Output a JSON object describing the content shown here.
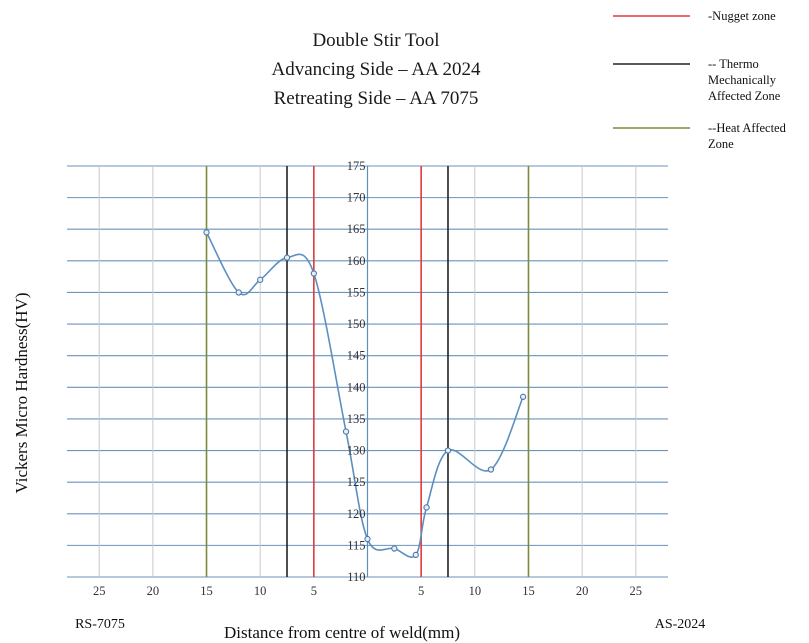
{
  "chart_data": {
    "type": "line",
    "title_lines": [
      "Double Stir Tool",
      "Advancing Side – AA 2024",
      "Retreating Side – AA 7075"
    ],
    "xlabel": "Distance from centre of weld(mm)",
    "ylabel": "Vickers Micro Hardness(HV)",
    "x_left_label": "RS-7075",
    "x_right_label": "AS-2024",
    "xlim": [
      -28,
      28
    ],
    "ylim": [
      110,
      175
    ],
    "x_ticks": [
      {
        "value": -25,
        "label": "25"
      },
      {
        "value": -20,
        "label": "20"
      },
      {
        "value": -15,
        "label": "15"
      },
      {
        "value": -10,
        "label": "10"
      },
      {
        "value": -5,
        "label": "5"
      },
      {
        "value": 5,
        "label": "5"
      },
      {
        "value": 10,
        "label": "10"
      },
      {
        "value": 15,
        "label": "15"
      },
      {
        "value": 20,
        "label": "20"
      },
      {
        "value": 25,
        "label": "25"
      }
    ],
    "y_ticks": [
      110,
      115,
      120,
      125,
      130,
      135,
      140,
      145,
      150,
      155,
      160,
      165,
      170,
      175
    ],
    "series": [
      {
        "x": [
          -15,
          -12,
          -10,
          -7.5,
          -5,
          -2,
          0,
          2.5,
          4.5,
          5.5,
          7.5,
          11.5,
          14.5
        ],
        "y": [
          164.5,
          155,
          157,
          160.5,
          158,
          133,
          116,
          114.5,
          113.5,
          121,
          130,
          127,
          138.5
        ],
        "color": "#5b8fc2"
      }
    ],
    "zone_lines": [
      {
        "x": -5,
        "color": "#e23a3a"
      },
      {
        "x": 5,
        "color": "#e23a3a"
      },
      {
        "x": -7.5,
        "color": "#222222"
      },
      {
        "x": 7.5,
        "color": "#222222"
      },
      {
        "x": -15,
        "color": "#7d8a3a"
      },
      {
        "x": 15,
        "color": "#7d8a3a"
      }
    ],
    "center_line_color": "#5b8fc2",
    "grid": true,
    "grid_color": "#6a93bd",
    "legend_position": "top-right",
    "legend": [
      {
        "lines": [
          "-Nugget zone"
        ],
        "color": "#e23a3a"
      },
      {
        "lines": [
          "-- Thermo",
          "Mechanically",
          "Affected Zone"
        ],
        "color": "#222222"
      },
      {
        "lines": [
          "--Heat Affected",
          "Zone"
        ],
        "color": "#7d8a3a"
      }
    ]
  }
}
